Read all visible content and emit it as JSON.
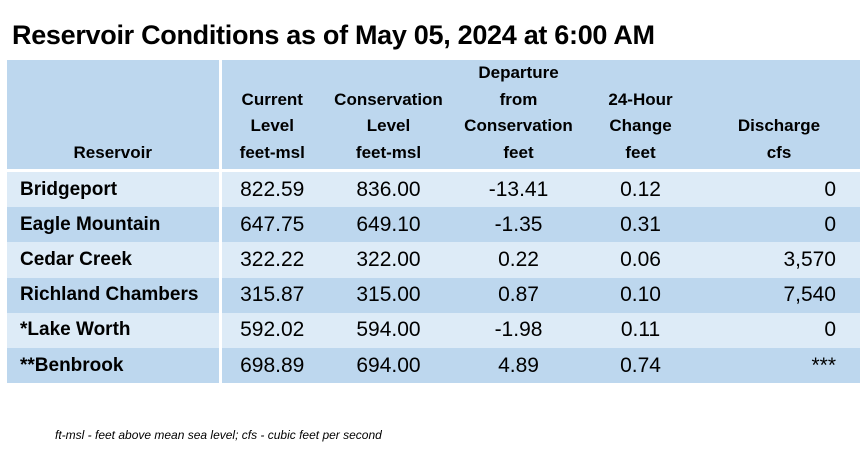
{
  "title": "Reservoir Conditions as of May 05, 2024 at 6:00 AM",
  "columns": {
    "reservoir": [
      "Reservoir"
    ],
    "current": [
      "Current",
      "Level",
      "feet-msl"
    ],
    "conservation": [
      "Conservation",
      "Level",
      "feet-msl"
    ],
    "departure": [
      "Departure",
      "from",
      "Conservation",
      "feet"
    ],
    "change": [
      "24-Hour",
      "Change",
      "feet"
    ],
    "discharge": [
      "Discharge",
      "cfs"
    ]
  },
  "rows": [
    {
      "reservoir": "Bridgeport",
      "current": "822.59",
      "conservation": "836.00",
      "departure": "-13.41",
      "change": "0.12",
      "discharge": "0"
    },
    {
      "reservoir": "Eagle Mountain",
      "current": "647.75",
      "conservation": "649.10",
      "departure": "-1.35",
      "change": "0.31",
      "discharge": "0"
    },
    {
      "reservoir": "Cedar Creek",
      "current": "322.22",
      "conservation": "322.00",
      "departure": "0.22",
      "change": "0.06",
      "discharge": "3,570"
    },
    {
      "reservoir": "Richland Chambers",
      "current": "315.87",
      "conservation": "315.00",
      "departure": "0.87",
      "change": "0.10",
      "discharge": "7,540"
    },
    {
      "reservoir": "*Lake Worth",
      "current": "592.02",
      "conservation": "594.00",
      "departure": "-1.98",
      "change": "0.11",
      "discharge": "0"
    },
    {
      "reservoir": "**Benbrook",
      "current": "698.89",
      "conservation": "694.00",
      "departure": "4.89",
      "change": "0.74",
      "discharge": "***"
    }
  ],
  "footnote": "ft-msl - feet above mean sea level; cfs - cubic feet per second",
  "colors": {
    "header_bg": "#bdd7ee",
    "row_light": "#ddebf7",
    "row_dark": "#bdd7ee"
  }
}
